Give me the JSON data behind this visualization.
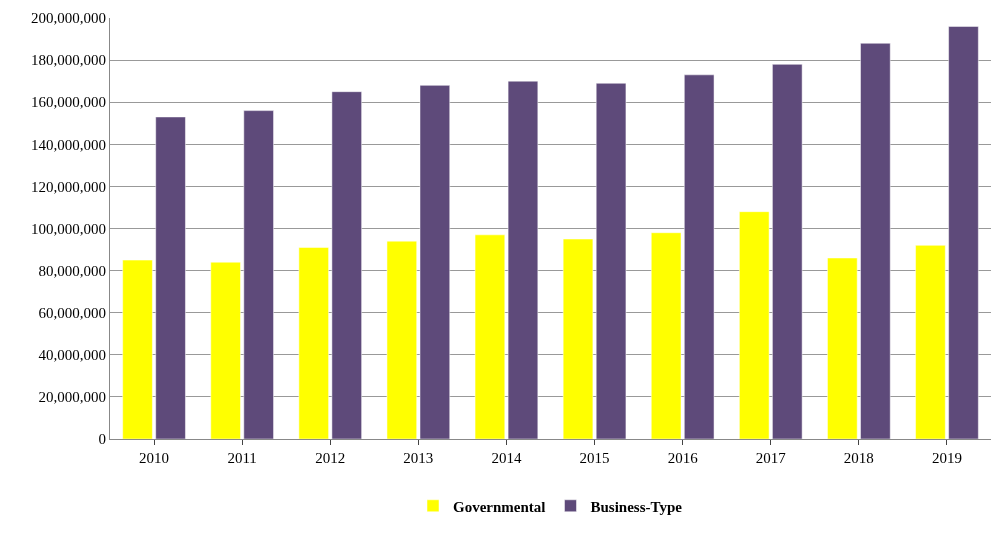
{
  "chart_data": {
    "type": "bar",
    "categories": [
      "2010",
      "2011",
      "2012",
      "2013",
      "2014",
      "2015",
      "2016",
      "2017",
      "2018",
      "2019"
    ],
    "series": [
      {
        "name": "Governmental",
        "color": "#ffff00",
        "values": [
          85000000,
          84000000,
          91000000,
          94000000,
          97000000,
          95000000,
          98000000,
          108000000,
          86000000,
          92000000
        ]
      },
      {
        "name": "Business-Type",
        "color": "#5e4a7a",
        "values": [
          153000000,
          156000000,
          165000000,
          168000000,
          170000000,
          169000000,
          173000000,
          178000000,
          188000000,
          196000000
        ]
      }
    ],
    "ylim": [
      0,
      200000000
    ],
    "yticks": [
      {
        "value": 0,
        "label": "0"
      },
      {
        "value": 20000000,
        "label": "20,000,000"
      },
      {
        "value": 40000000,
        "label": "40,000,000"
      },
      {
        "value": 60000000,
        "label": "60,000,000"
      },
      {
        "value": 80000000,
        "label": "80,000,000"
      },
      {
        "value": 100000000,
        "label": "100,000,000"
      },
      {
        "value": 120000000,
        "label": "120,000,000"
      },
      {
        "value": 140000000,
        "label": "140,000,000"
      },
      {
        "value": 160000000,
        "label": "160,000,000"
      },
      {
        "value": 180000000,
        "label": "180,000,000"
      },
      {
        "value": 200000000,
        "label": "200,000,000"
      }
    ],
    "grid": "y",
    "legend": "bottom"
  }
}
